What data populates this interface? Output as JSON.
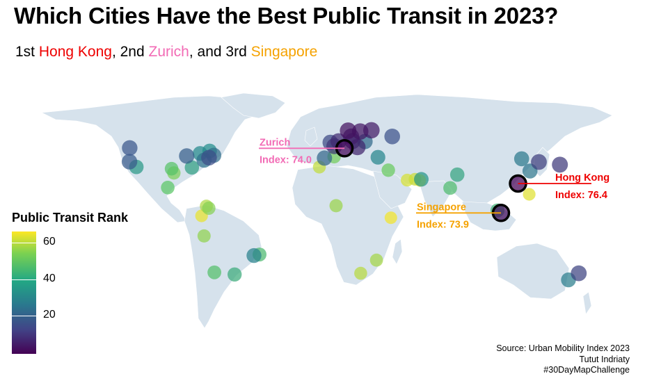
{
  "title": "Which Cities Have the Best Public Transit in 2023?",
  "subtitle": {
    "prefix1": "1st ",
    "first": "Hong Kong",
    "prefix2": ", 2nd ",
    "second": "Zurich",
    "prefix3": ", and 3rd ",
    "third": "Singapore"
  },
  "colors": {
    "hong_kong": "#EE0000",
    "zurich": "#F26BB5",
    "singapore": "#F5A200",
    "land": "#D6E2EC",
    "border": "#FFFFFF"
  },
  "legend": {
    "title": "Public Transit Rank",
    "ticks": [
      "60",
      "40",
      "20"
    ]
  },
  "source": {
    "line1": "Source: Urban Mobility Index 2023",
    "line2": "Tutut Indriaty",
    "line3": "#30DayMapChallenge"
  },
  "chart_data": {
    "type": "scatter",
    "map": "world",
    "color_scale": "viridis",
    "rank_range": [
      1,
      65
    ],
    "highlights": [
      {
        "city": "Hong Kong",
        "label": "Hong Kong",
        "index_label": "Index: 76.4",
        "rank": 1,
        "lon": 114.2,
        "lat": 22.3
      },
      {
        "city": "Zurich",
        "label": "Zurich",
        "index_label": "Index: 74.0",
        "rank": 2,
        "lon": 8.5,
        "lat": 47.4
      },
      {
        "city": "Singapore",
        "label": "Singapore",
        "index_label": "Index: 73.9",
        "rank": 3,
        "lon": 103.8,
        "lat": 1.35
      }
    ],
    "points": [
      {
        "lon": 114.2,
        "lat": 22.3,
        "rank": 1
      },
      {
        "lon": 8.5,
        "lat": 47.4,
        "rank": 2
      },
      {
        "lon": 103.8,
        "lat": 1.35,
        "rank": 3
      },
      {
        "lon": 10.7,
        "lat": 59.9,
        "rank": 4
      },
      {
        "lon": 18.1,
        "lat": 59.3,
        "rank": 5
      },
      {
        "lon": 24.9,
        "lat": 60.2,
        "rank": 6
      },
      {
        "lon": 12.6,
        "lat": 55.7,
        "rank": 7
      },
      {
        "lon": 16.4,
        "lat": 48.2,
        "rank": 8
      },
      {
        "lon": 4.9,
        "lat": 52.4,
        "rank": 9
      },
      {
        "lon": 13.4,
        "lat": 52.5,
        "rank": 10
      },
      {
        "lon": 2.35,
        "lat": 48.9,
        "rank": 11
      },
      {
        "lon": 139.7,
        "lat": 35.7,
        "rank": 12
      },
      {
        "lon": 126.9,
        "lat": 37.6,
        "rank": 13
      },
      {
        "lon": 151.2,
        "lat": -33.9,
        "rank": 14
      },
      {
        "lon": -0.1,
        "lat": 51.5,
        "rank": 15
      },
      {
        "lon": -74.0,
        "lat": 40.7,
        "rank": 16
      },
      {
        "lon": 37.6,
        "lat": 55.8,
        "rank": 17
      },
      {
        "lon": -122.3,
        "lat": 47.6,
        "rank": 18
      },
      {
        "lon": -122.4,
        "lat": 37.8,
        "rank": 19
      },
      {
        "lon": -87.6,
        "lat": 41.9,
        "rank": 20
      },
      {
        "lon": -3.7,
        "lat": 40.4,
        "rank": 22
      },
      {
        "lon": 21.0,
        "lat": 52.2,
        "rank": 23
      },
      {
        "lon": -71.1,
        "lat": 42.4,
        "rank": 24
      },
      {
        "lon": -77.0,
        "lat": 38.9,
        "rank": 25
      },
      {
        "lon": 121.5,
        "lat": 31.2,
        "rank": 26
      },
      {
        "lon": 116.4,
        "lat": 39.9,
        "rank": 27
      },
      {
        "lon": 144.9,
        "lat": -37.8,
        "rank": 28
      },
      {
        "lon": -46.6,
        "lat": -23.5,
        "rank": 29
      },
      {
        "lon": 28.9,
        "lat": 41.0,
        "rank": 30
      },
      {
        "lon": -79.4,
        "lat": 43.7,
        "rank": 31
      },
      {
        "lon": -73.6,
        "lat": 45.5,
        "rank": 32
      },
      {
        "lon": 55.3,
        "lat": 25.3,
        "rank": 34
      },
      {
        "lon": -118.2,
        "lat": 34.1,
        "rank": 35
      },
      {
        "lon": -84.4,
        "lat": 33.7,
        "rank": 37
      },
      {
        "lon": 77.2,
        "lat": 28.6,
        "rank": 38
      },
      {
        "lon": -58.4,
        "lat": -34.6,
        "rank": 40
      },
      {
        "lon": 101.7,
        "lat": 3.1,
        "rank": 42
      },
      {
        "lon": -43.2,
        "lat": -22.9,
        "rank": 44
      },
      {
        "lon": 72.9,
        "lat": 19.1,
        "rank": 45
      },
      {
        "lon": -70.7,
        "lat": -33.4,
        "rank": 46
      },
      {
        "lon": -96.8,
        "lat": 32.8,
        "rank": 47
      },
      {
        "lon": -99.1,
        "lat": 19.4,
        "rank": 48
      },
      {
        "lon": 35.2,
        "lat": 31.8,
        "rank": 50
      },
      {
        "lon": 2.2,
        "lat": 41.4,
        "rank": 51
      },
      {
        "lon": -95.4,
        "lat": 29.8,
        "rank": 52
      },
      {
        "lon": -74.1,
        "lat": 4.7,
        "rank": 53
      },
      {
        "lon": -77.0,
        "lat": -12.0,
        "rank": 54
      },
      {
        "lon": 3.4,
        "lat": 6.5,
        "rank": 55
      },
      {
        "lon": 28.0,
        "lat": -26.2,
        "rank": 56
      },
      {
        "lon": -75.6,
        "lat": 6.2,
        "rank": 57
      },
      {
        "lon": 18.4,
        "lat": -33.9,
        "rank": 58
      },
      {
        "lon": -6.8,
        "lat": 34.0,
        "rank": 59
      },
      {
        "lon": 51.5,
        "lat": 25.3,
        "rank": 60
      },
      {
        "lon": 46.7,
        "lat": 24.7,
        "rank": 61
      },
      {
        "lon": 121.0,
        "lat": 14.6,
        "rank": 62
      },
      {
        "lon": -78.5,
        "lat": -0.2,
        "rank": 63
      },
      {
        "lon": 36.8,
        "lat": -1.3,
        "rank": 64
      },
      {
        "lon": 54.4,
        "lat": 24.5,
        "rank": 65
      }
    ]
  }
}
